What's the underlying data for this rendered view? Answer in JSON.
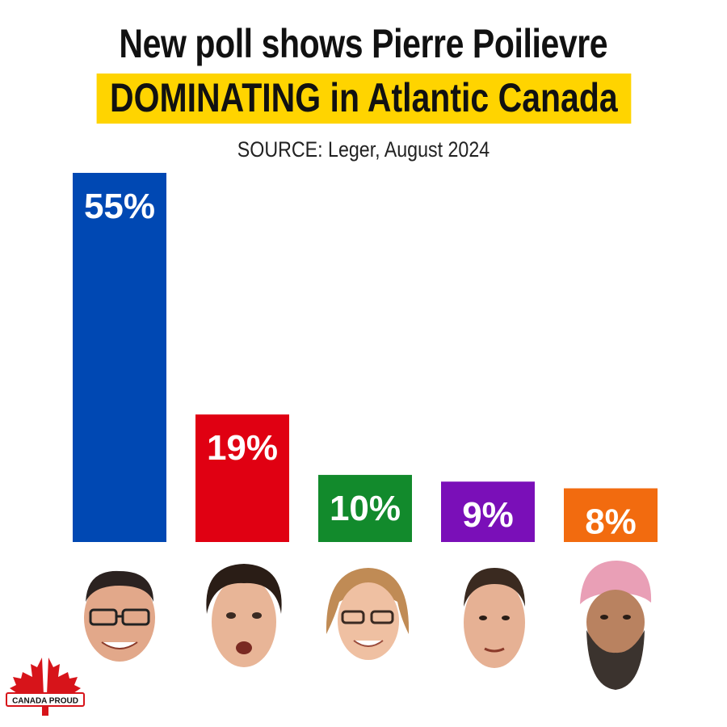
{
  "title_line1": "New poll shows Pierre Poilievre",
  "title_line2": "DOMINATING in Atlantic Canada",
  "source": "SOURCE: Leger, August 2024",
  "logo": {
    "text": "CANADA PROUD",
    "color": "#d7141a"
  },
  "chart_data": {
    "type": "bar",
    "categories": [
      "",
      "",
      "",
      "",
      ""
    ],
    "values": [
      55,
      19,
      10,
      9,
      8
    ],
    "labels": [
      "55%",
      "19%",
      "10%",
      "9%",
      "8%"
    ],
    "colors": [
      "#0048b3",
      "#e00012",
      "#128a2c",
      "#7a0fb8",
      "#f26b0f"
    ],
    "title": "New poll shows Pierre Poilievre DOMINATING in Atlantic Canada",
    "xlabel": "",
    "ylabel": "",
    "ylim": [
      0,
      55
    ],
    "grid": false,
    "legend": "none"
  }
}
